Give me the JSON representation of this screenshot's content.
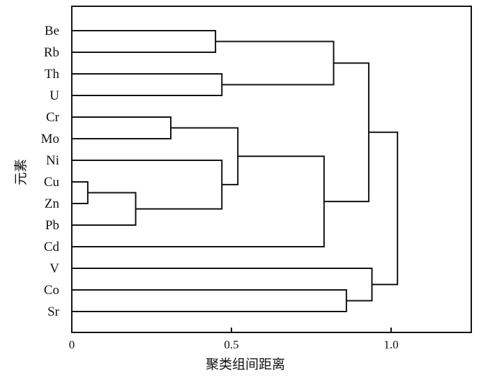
{
  "chart_data": {
    "type": "dendrogram",
    "ylabel": "元素",
    "xlabel": "聚类组间距离",
    "xlim": [
      0,
      1.25
    ],
    "x_ticks": [
      {
        "value": 0,
        "label": "0"
      },
      {
        "value": 0.5,
        "label": "0.5"
      },
      {
        "value": 1.0,
        "label": "1.0"
      }
    ],
    "leaves": [
      "Be",
      "Rb",
      "Th",
      "U",
      "Cr",
      "Mo",
      "Ni",
      "Cu",
      "Zn",
      "Pb",
      "Cd",
      "V",
      "Co",
      "Sr"
    ],
    "merges": [
      {
        "a": "Cu",
        "b": "Zn",
        "distance": 0.05
      },
      {
        "a": "Cu+Zn",
        "b": "Pb",
        "distance": 0.2
      },
      {
        "a": "Cr",
        "b": "Mo",
        "distance": 0.31
      },
      {
        "a": "Be",
        "b": "Rb",
        "distance": 0.45
      },
      {
        "a": "Ni",
        "b": "Cu+Zn+Pb",
        "distance": 0.47
      },
      {
        "a": "Th",
        "b": "U",
        "distance": 0.47
      },
      {
        "a": "Cr+Mo",
        "b": "Ni+Cu+Zn+Pb",
        "distance": 0.52
      },
      {
        "a": "Cr..Pb",
        "b": "Cd",
        "distance": 0.79
      },
      {
        "a": "Be+Rb",
        "b": "Th+U",
        "distance": 0.82
      },
      {
        "a": "Co",
        "b": "Sr",
        "distance": 0.86
      },
      {
        "a": "Be..U",
        "b": "Cr..Cd",
        "distance": 0.93
      },
      {
        "a": "V",
        "b": "Co+Sr",
        "distance": 0.94
      },
      {
        "a": "Be..Cd",
        "b": "V..Sr",
        "distance": 1.02
      }
    ]
  }
}
